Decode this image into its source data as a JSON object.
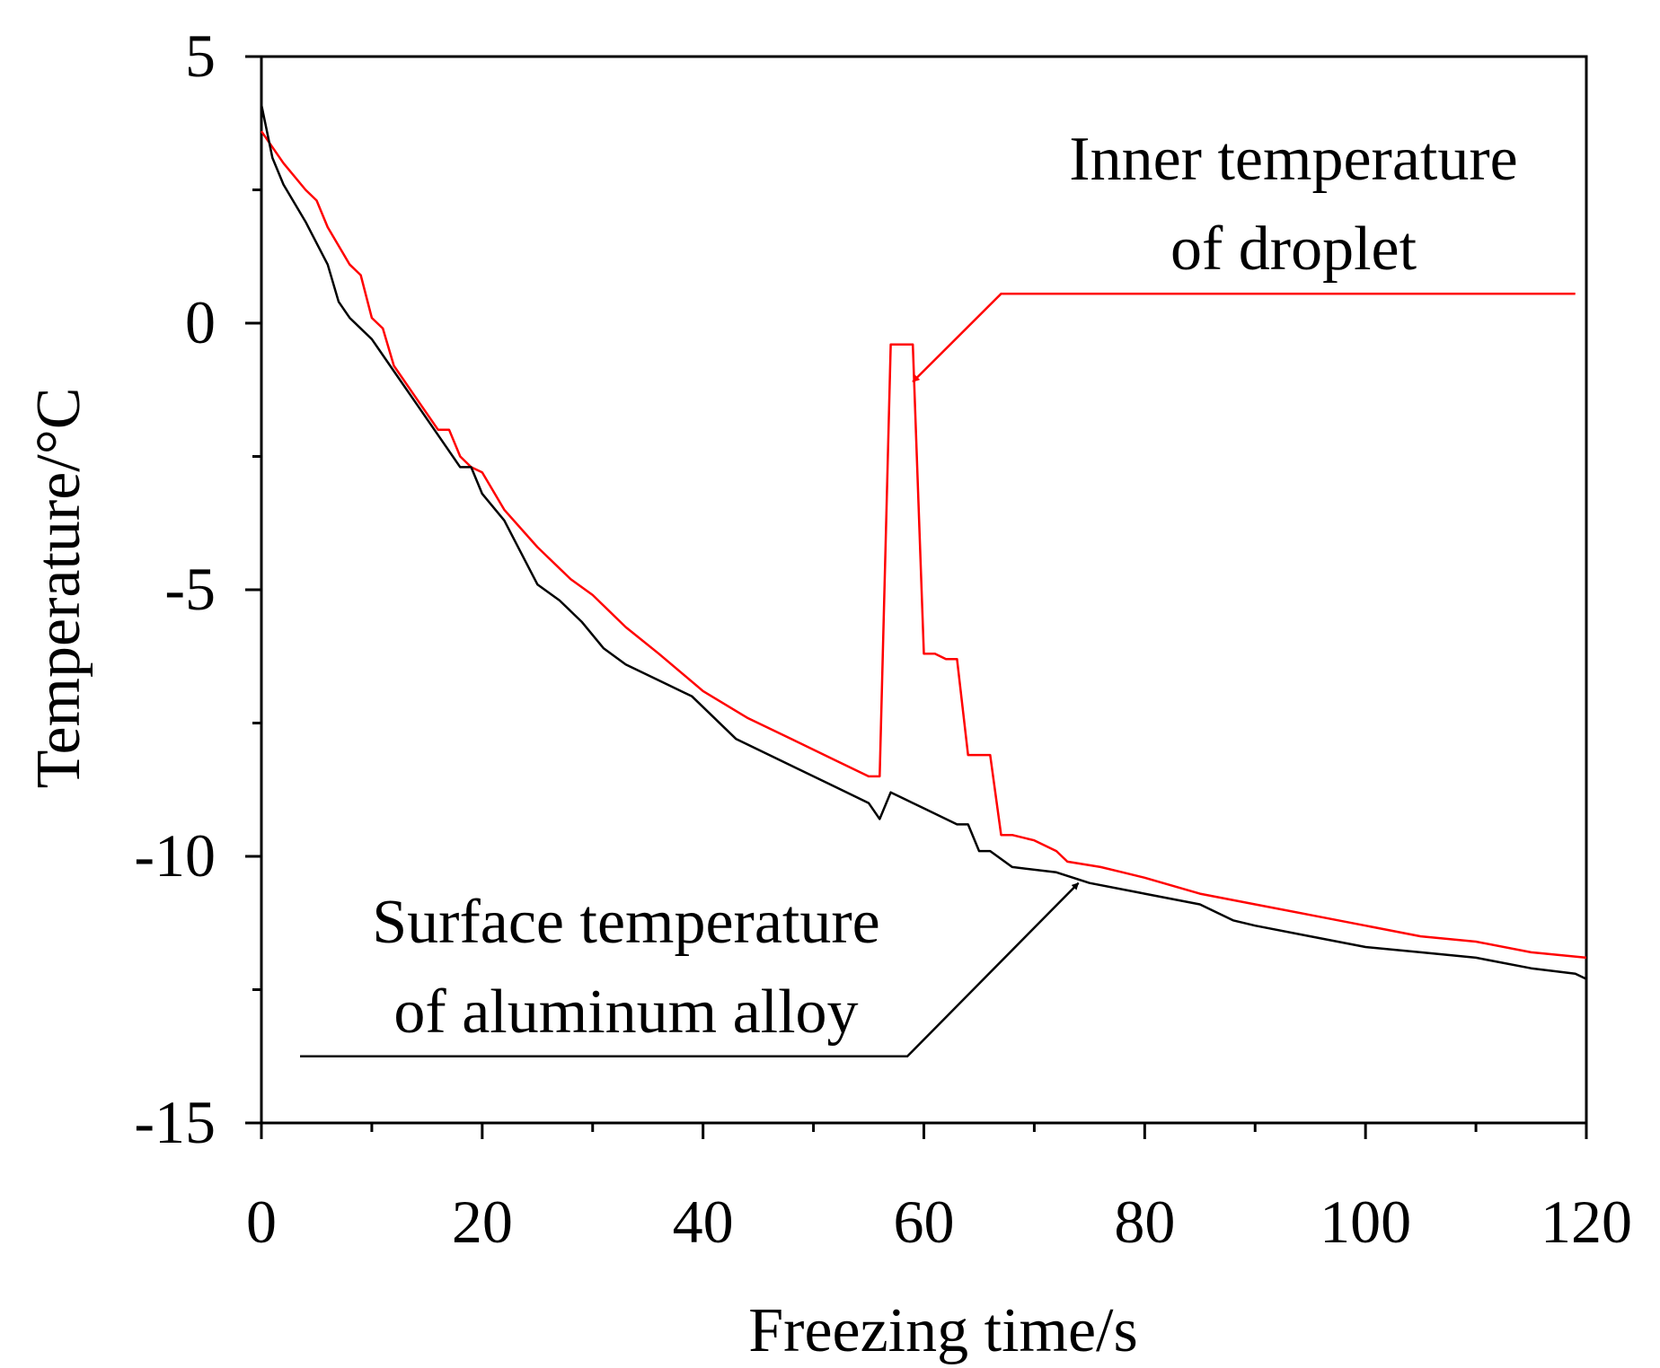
{
  "chart_data": {
    "type": "line",
    "title": "",
    "xlabel": "Freezing time/s",
    "ylabel": "Temperature/°C",
    "xlim": [
      0,
      120
    ],
    "ylim": [
      -15,
      5
    ],
    "x_ticks": [
      "0",
      "20",
      "40",
      "60",
      "80",
      "100",
      "120"
    ],
    "y_ticks": [
      "5",
      "0",
      "-5",
      "-10",
      "-15"
    ],
    "grid": false,
    "series": [
      {
        "name": "Inner temperature of droplet",
        "color": "#ff0000",
        "points": [
          [
            0,
            3.6
          ],
          [
            2,
            3.0
          ],
          [
            4,
            2.5
          ],
          [
            5,
            2.3
          ],
          [
            6,
            1.8
          ],
          [
            8,
            1.1
          ],
          [
            9,
            0.9
          ],
          [
            10,
            0.1
          ],
          [
            11,
            -0.1
          ],
          [
            12,
            -0.8
          ],
          [
            14,
            -1.4
          ],
          [
            16,
            -2.0
          ],
          [
            17,
            -2.0
          ],
          [
            18,
            -2.5
          ],
          [
            19,
            -2.7
          ],
          [
            20,
            -2.8
          ],
          [
            22,
            -3.5
          ],
          [
            25,
            -4.2
          ],
          [
            28,
            -4.8
          ],
          [
            30,
            -5.1
          ],
          [
            33,
            -5.7
          ],
          [
            36,
            -6.2
          ],
          [
            40,
            -6.9
          ],
          [
            44,
            -7.4
          ],
          [
            48,
            -7.8
          ],
          [
            52,
            -8.2
          ],
          [
            55,
            -8.5
          ],
          [
            56,
            -8.5
          ],
          [
            57,
            -0.4
          ],
          [
            58,
            -0.4
          ],
          [
            59,
            -0.4
          ],
          [
            60,
            -6.2
          ],
          [
            61,
            -6.2
          ],
          [
            62,
            -6.3
          ],
          [
            63,
            -6.3
          ],
          [
            64,
            -8.1
          ],
          [
            66,
            -8.1
          ],
          [
            67,
            -9.6
          ],
          [
            68,
            -9.6
          ],
          [
            70,
            -9.7
          ],
          [
            72,
            -9.9
          ],
          [
            73,
            -10.1
          ],
          [
            76,
            -10.2
          ],
          [
            78,
            -10.3
          ],
          [
            80,
            -10.4
          ],
          [
            85,
            -10.7
          ],
          [
            90,
            -10.9
          ],
          [
            95,
            -11.1
          ],
          [
            100,
            -11.3
          ],
          [
            105,
            -11.5
          ],
          [
            110,
            -11.6
          ],
          [
            115,
            -11.8
          ],
          [
            120,
            -11.9
          ]
        ]
      },
      {
        "name": "Surface temperature of aluminum alloy",
        "color": "#000000",
        "points": [
          [
            0,
            4.1
          ],
          [
            1,
            3.1
          ],
          [
            2,
            2.6
          ],
          [
            4,
            1.9
          ],
          [
            5,
            1.5
          ],
          [
            6,
            1.1
          ],
          [
            7,
            0.4
          ],
          [
            8,
            0.1
          ],
          [
            10,
            -0.3
          ],
          [
            12,
            -0.9
          ],
          [
            14,
            -1.5
          ],
          [
            16,
            -2.1
          ],
          [
            18,
            -2.7
          ],
          [
            19,
            -2.7
          ],
          [
            20,
            -3.2
          ],
          [
            22,
            -3.7
          ],
          [
            24,
            -4.5
          ],
          [
            25,
            -4.9
          ],
          [
            27,
            -5.2
          ],
          [
            29,
            -5.6
          ],
          [
            31,
            -6.1
          ],
          [
            33,
            -6.4
          ],
          [
            36,
            -6.7
          ],
          [
            39,
            -7.0
          ],
          [
            43,
            -7.8
          ],
          [
            48,
            -8.3
          ],
          [
            52,
            -8.7
          ],
          [
            55,
            -9.0
          ],
          [
            56,
            -9.3
          ],
          [
            57,
            -8.8
          ],
          [
            60,
            -9.1
          ],
          [
            63,
            -9.4
          ],
          [
            64,
            -9.4
          ],
          [
            65,
            -9.9
          ],
          [
            66,
            -9.9
          ],
          [
            68,
            -10.2
          ],
          [
            72,
            -10.3
          ],
          [
            75,
            -10.5
          ],
          [
            80,
            -10.7
          ],
          [
            85,
            -10.9
          ],
          [
            88,
            -11.2
          ],
          [
            90,
            -11.3
          ],
          [
            95,
            -11.5
          ],
          [
            100,
            -11.7
          ],
          [
            105,
            -11.8
          ],
          [
            110,
            -11.9
          ],
          [
            115,
            -12.1
          ],
          [
            119,
            -12.2
          ],
          [
            120,
            -12.3
          ]
        ]
      }
    ],
    "annotations": [
      {
        "lines": [
          "Inner temperature",
          "of droplet"
        ],
        "series": "Inner temperature of droplet",
        "arrow_tip": [
          59,
          -1.1
        ],
        "leader_corner": [
          67,
          0.55
        ],
        "leader_end": [
          119,
          0.55
        ],
        "color": "#ff0000"
      },
      {
        "lines": [
          "Surface temperature",
          "of aluminum alloy"
        ],
        "series": "Surface temperature of aluminum alloy",
        "arrow_tip": [
          74,
          -10.5
        ],
        "leader_corner": [
          58.5,
          -13.75
        ],
        "leader_end": [
          3.5,
          -13.75
        ],
        "color": "#000000"
      }
    ]
  }
}
